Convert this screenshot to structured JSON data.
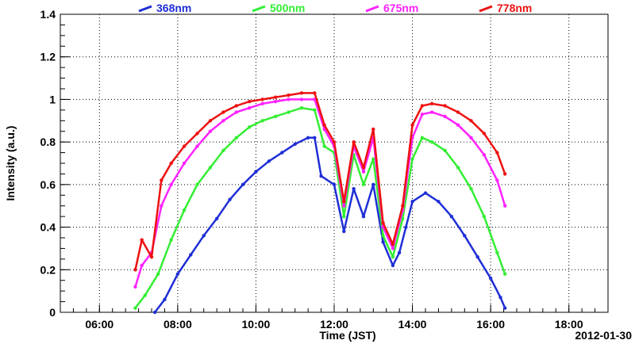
{
  "chart_data": {
    "type": "scatter",
    "title": "",
    "xlabel": "Time (JST)",
    "ylabel": "Intensity (a.u.)",
    "date_label": "2012-01-30",
    "xlim": [
      "05:00",
      "19:00"
    ],
    "ylim": [
      0,
      1.4
    ],
    "x_ticks": [
      "06:00",
      "08:00",
      "10:00",
      "12:00",
      "14:00",
      "16:00",
      "18:00"
    ],
    "y_ticks": [
      "0",
      "0.2",
      "0.4",
      "0.6",
      "0.8",
      "1",
      "1.2",
      "1.4"
    ],
    "grid": true,
    "legend_position": "top",
    "series": [
      {
        "name": "368nm",
        "color": "#1f2fd6",
        "points": [
          [
            "07:25",
            0.0
          ],
          [
            "07:40",
            0.06
          ],
          [
            "08:00",
            0.18
          ],
          [
            "08:20",
            0.27
          ],
          [
            "08:40",
            0.36
          ],
          [
            "09:00",
            0.44
          ],
          [
            "09:20",
            0.53
          ],
          [
            "09:40",
            0.6
          ],
          [
            "10:00",
            0.66
          ],
          [
            "10:20",
            0.71
          ],
          [
            "10:40",
            0.75
          ],
          [
            "11:00",
            0.79
          ],
          [
            "11:20",
            0.82
          ],
          [
            "11:30",
            0.82
          ],
          [
            "11:40",
            0.64
          ],
          [
            "12:00",
            0.6
          ],
          [
            "12:15",
            0.38
          ],
          [
            "12:30",
            0.58
          ],
          [
            "12:45",
            0.45
          ],
          [
            "13:00",
            0.6
          ],
          [
            "13:15",
            0.33
          ],
          [
            "13:30",
            0.22
          ],
          [
            "13:40",
            0.28
          ],
          [
            "13:50",
            0.4
          ],
          [
            "14:00",
            0.52
          ],
          [
            "14:20",
            0.56
          ],
          [
            "14:40",
            0.52
          ],
          [
            "15:00",
            0.45
          ],
          [
            "15:20",
            0.36
          ],
          [
            "15:40",
            0.26
          ],
          [
            "16:00",
            0.16
          ],
          [
            "16:15",
            0.07
          ],
          [
            "16:22",
            0.02
          ]
        ]
      },
      {
        "name": "500nm",
        "color": "#33ee33",
        "points": [
          [
            "06:55",
            0.02
          ],
          [
            "07:10",
            0.08
          ],
          [
            "07:30",
            0.18
          ],
          [
            "07:50",
            0.34
          ],
          [
            "08:10",
            0.48
          ],
          [
            "08:30",
            0.6
          ],
          [
            "08:50",
            0.68
          ],
          [
            "09:10",
            0.76
          ],
          [
            "09:30",
            0.82
          ],
          [
            "09:50",
            0.87
          ],
          [
            "10:10",
            0.9
          ],
          [
            "10:30",
            0.92
          ],
          [
            "10:50",
            0.94
          ],
          [
            "11:10",
            0.96
          ],
          [
            "11:30",
            0.95
          ],
          [
            "11:45",
            0.78
          ],
          [
            "12:00",
            0.75
          ],
          [
            "12:15",
            0.45
          ],
          [
            "12:30",
            0.74
          ],
          [
            "12:45",
            0.6
          ],
          [
            "13:00",
            0.72
          ],
          [
            "13:15",
            0.36
          ],
          [
            "13:30",
            0.26
          ],
          [
            "13:45",
            0.44
          ],
          [
            "14:00",
            0.72
          ],
          [
            "14:15",
            0.82
          ],
          [
            "14:30",
            0.8
          ],
          [
            "14:50",
            0.76
          ],
          [
            "15:10",
            0.68
          ],
          [
            "15:30",
            0.58
          ],
          [
            "15:50",
            0.45
          ],
          [
            "16:10",
            0.28
          ],
          [
            "16:22",
            0.18
          ]
        ]
      },
      {
        "name": "675nm",
        "color": "#ff22ff",
        "points": [
          [
            "06:55",
            0.12
          ],
          [
            "07:05",
            0.22
          ],
          [
            "07:20",
            0.28
          ],
          [
            "07:35",
            0.5
          ],
          [
            "07:50",
            0.6
          ],
          [
            "08:10",
            0.7
          ],
          [
            "08:30",
            0.78
          ],
          [
            "08:50",
            0.85
          ],
          [
            "09:10",
            0.9
          ],
          [
            "09:30",
            0.94
          ],
          [
            "09:50",
            0.96
          ],
          [
            "10:10",
            0.98
          ],
          [
            "10:30",
            0.99
          ],
          [
            "10:50",
            1.0
          ],
          [
            "11:10",
            1.0
          ],
          [
            "11:30",
            1.0
          ],
          [
            "11:45",
            0.86
          ],
          [
            "12:00",
            0.78
          ],
          [
            "12:15",
            0.5
          ],
          [
            "12:30",
            0.78
          ],
          [
            "12:45",
            0.66
          ],
          [
            "13:00",
            0.82
          ],
          [
            "13:15",
            0.4
          ],
          [
            "13:30",
            0.3
          ],
          [
            "13:45",
            0.48
          ],
          [
            "14:00",
            0.82
          ],
          [
            "14:15",
            0.93
          ],
          [
            "14:30",
            0.94
          ],
          [
            "14:50",
            0.92
          ],
          [
            "15:10",
            0.88
          ],
          [
            "15:30",
            0.82
          ],
          [
            "15:50",
            0.74
          ],
          [
            "16:10",
            0.62
          ],
          [
            "16:22",
            0.5
          ]
        ]
      },
      {
        "name": "778nm",
        "color": "#ee1111",
        "points": [
          [
            "06:55",
            0.2
          ],
          [
            "07:05",
            0.34
          ],
          [
            "07:20",
            0.26
          ],
          [
            "07:35",
            0.62
          ],
          [
            "07:50",
            0.7
          ],
          [
            "08:10",
            0.78
          ],
          [
            "08:30",
            0.84
          ],
          [
            "08:50",
            0.9
          ],
          [
            "09:10",
            0.94
          ],
          [
            "09:30",
            0.97
          ],
          [
            "09:50",
            0.99
          ],
          [
            "10:10",
            1.0
          ],
          [
            "10:30",
            1.01
          ],
          [
            "10:50",
            1.02
          ],
          [
            "11:10",
            1.03
          ],
          [
            "11:30",
            1.03
          ],
          [
            "11:45",
            0.88
          ],
          [
            "12:00",
            0.8
          ],
          [
            "12:15",
            0.52
          ],
          [
            "12:30",
            0.8
          ],
          [
            "12:45",
            0.68
          ],
          [
            "13:00",
            0.86
          ],
          [
            "13:15",
            0.42
          ],
          [
            "13:30",
            0.32
          ],
          [
            "13:45",
            0.5
          ],
          [
            "14:00",
            0.88
          ],
          [
            "14:15",
            0.97
          ],
          [
            "14:30",
            0.98
          ],
          [
            "14:50",
            0.97
          ],
          [
            "15:10",
            0.94
          ],
          [
            "15:30",
            0.9
          ],
          [
            "15:50",
            0.84
          ],
          [
            "16:10",
            0.75
          ],
          [
            "16:22",
            0.65
          ]
        ]
      }
    ]
  }
}
